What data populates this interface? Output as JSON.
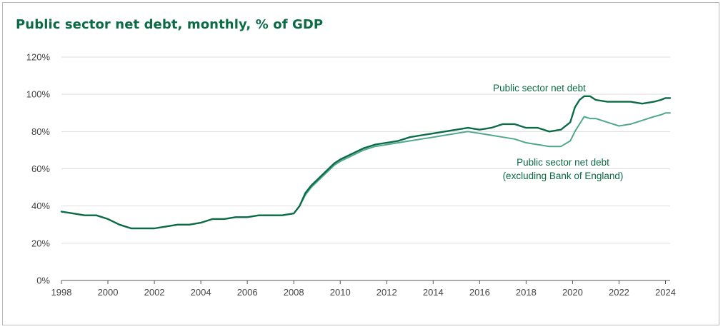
{
  "chart_data": {
    "type": "line",
    "title": "Public sector net debt, monthly, % of GDP",
    "xlabel": "",
    "ylabel": "",
    "xlim": [
      1998,
      2024.2
    ],
    "ylim": [
      0,
      120
    ],
    "x_ticks": [
      "1998",
      "2000",
      "2002",
      "2004",
      "2006",
      "2008",
      "2010",
      "2012",
      "2014",
      "2016",
      "2018",
      "2020",
      "2022",
      "2024"
    ],
    "y_ticks": [
      "0%",
      "20%",
      "40%",
      "60%",
      "80%",
      "100%",
      "120%"
    ],
    "grid": "horizontal",
    "colors": {
      "psnd": "#0a6b45",
      "psnd_ex_boe": "#4fa88d",
      "title": "#0a6b45",
      "grid": "#dddddd",
      "axis": "#555555"
    },
    "series": [
      {
        "name": "Public sector net debt",
        "label_lines": [
          "Public sector net debt"
        ],
        "x": [
          1998,
          1998.5,
          1999,
          1999.5,
          2000,
          2000.5,
          2001,
          2001.5,
          2002,
          2002.5,
          2003,
          2003.5,
          2004,
          2004.5,
          2005,
          2005.5,
          2006,
          2006.5,
          2007,
          2007.5,
          2008,
          2008.25,
          2008.5,
          2008.75,
          2009,
          2009.25,
          2009.5,
          2009.75,
          2010,
          2010.5,
          2011,
          2011.5,
          2012,
          2012.5,
          2013,
          2013.5,
          2014,
          2014.5,
          2015,
          2015.5,
          2016,
          2016.5,
          2017,
          2017.5,
          2018,
          2018.5,
          2019,
          2019.5,
          2019.9,
          2020.1,
          2020.3,
          2020.5,
          2020.75,
          2021,
          2021.5,
          2022,
          2022.5,
          2023,
          2023.5,
          2023.8,
          2024,
          2024.2
        ],
        "values": [
          37,
          36,
          35,
          35,
          33,
          30,
          28,
          28,
          28,
          29,
          30,
          30,
          31,
          33,
          33,
          34,
          34,
          35,
          35,
          35,
          36,
          40,
          47,
          51,
          54,
          57,
          60,
          63,
          65,
          68,
          71,
          73,
          74,
          75,
          77,
          78,
          79,
          80,
          81,
          82,
          81,
          82,
          84,
          84,
          82,
          82,
          80,
          81,
          85,
          93,
          97,
          99,
          99,
          97,
          96,
          96,
          96,
          95,
          96,
          97,
          98,
          98
        ]
      },
      {
        "name": "Public sector net debt (excluding Bank of England)",
        "label_lines": [
          "Public sector net debt",
          "(excluding Bank of England)"
        ],
        "x": [
          1998,
          1998.5,
          1999,
          1999.5,
          2000,
          2000.5,
          2001,
          2001.5,
          2002,
          2002.5,
          2003,
          2003.5,
          2004,
          2004.5,
          2005,
          2005.5,
          2006,
          2006.5,
          2007,
          2007.5,
          2008,
          2008.25,
          2008.5,
          2008.75,
          2009,
          2009.25,
          2009.5,
          2009.75,
          2010,
          2010.5,
          2011,
          2011.5,
          2012,
          2012.5,
          2013,
          2013.5,
          2014,
          2014.5,
          2015,
          2015.5,
          2016,
          2016.5,
          2017,
          2017.5,
          2018,
          2018.5,
          2019,
          2019.5,
          2019.9,
          2020.1,
          2020.3,
          2020.5,
          2020.75,
          2021,
          2021.5,
          2022,
          2022.5,
          2023,
          2023.5,
          2023.8,
          2024,
          2024.2
        ],
        "values": [
          37,
          36,
          35,
          35,
          33,
          30,
          28,
          28,
          28,
          29,
          30,
          30,
          31,
          33,
          33,
          34,
          34,
          35,
          35,
          35,
          36,
          40,
          46,
          50,
          53,
          56,
          59,
          62,
          64,
          67,
          70,
          72,
          73,
          74,
          75,
          76,
          77,
          78,
          79,
          80,
          79,
          78,
          77,
          76,
          74,
          73,
          72,
          72,
          75,
          80,
          84,
          88,
          87,
          87,
          85,
          83,
          84,
          86,
          88,
          89,
          90,
          90
        ]
      }
    ]
  }
}
